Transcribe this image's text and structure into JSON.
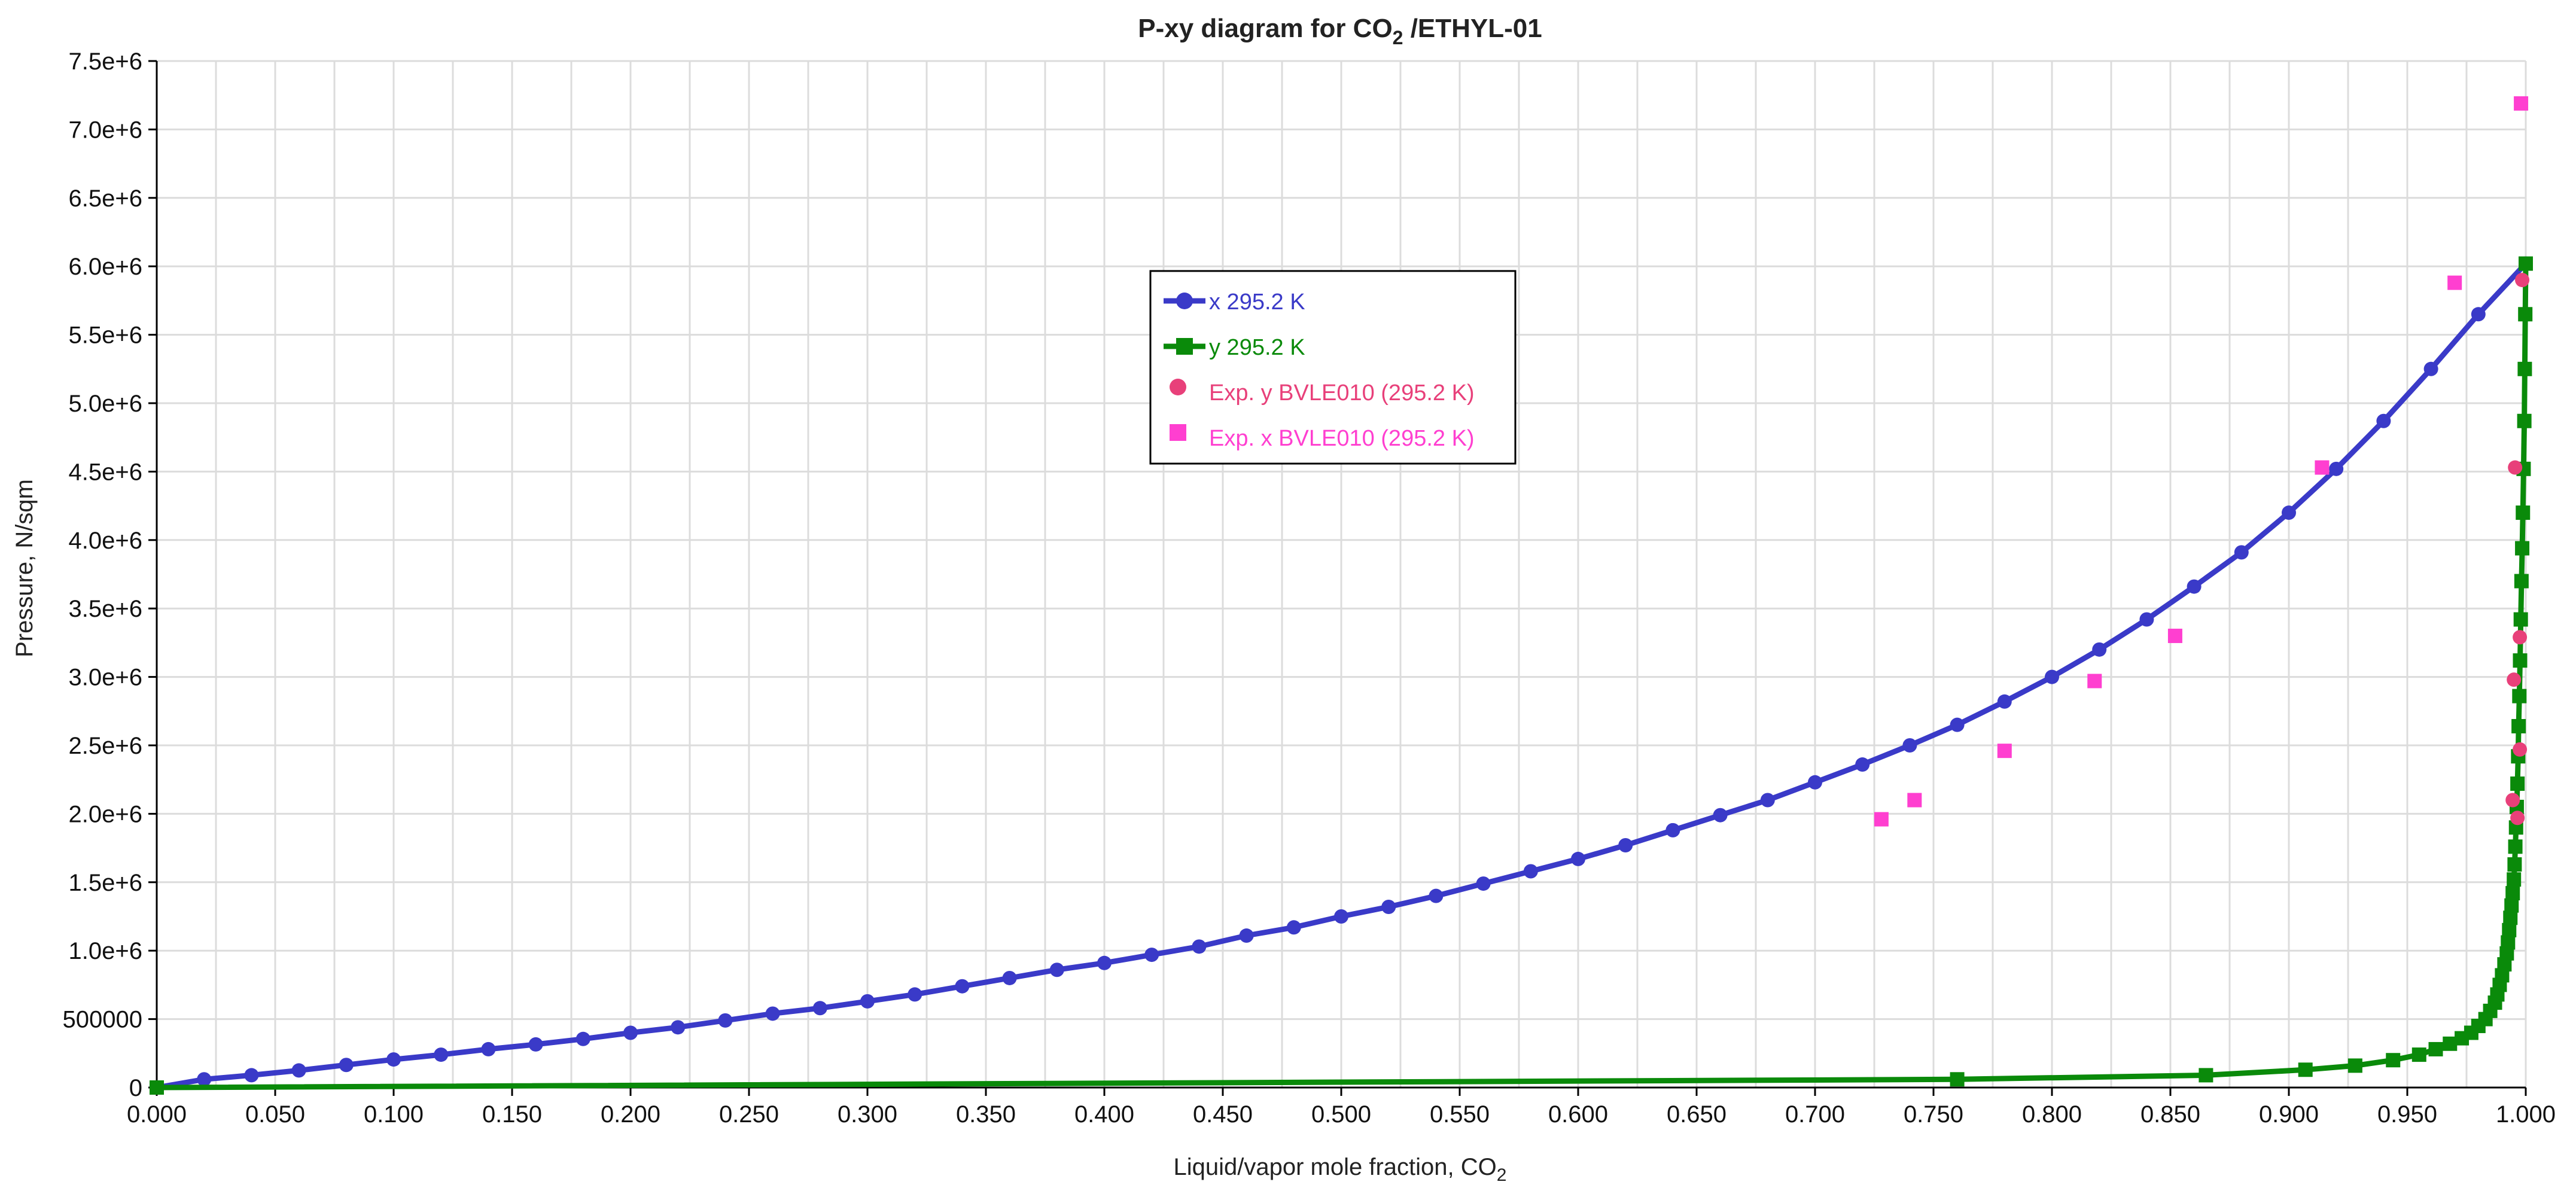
{
  "chart_data": {
    "type": "line",
    "title": "P-xy diagram for CO",
    "title_sub": "2",
    "title_rest": " /ETHYL-01",
    "xlabel": "Liquid/vapor mole fraction, CO",
    "xlabel_sub": "2",
    "ylabel": "Pressure, N/sqm",
    "xlim": [
      0,
      1
    ],
    "ylim": [
      0,
      7500000
    ],
    "grid": true,
    "legend_position": "top-center",
    "x_ticks": [
      {
        "v": 0.0,
        "label": "0.000"
      },
      {
        "v": 0.05,
        "label": "0.050"
      },
      {
        "v": 0.1,
        "label": "0.100"
      },
      {
        "v": 0.15,
        "label": "0.150"
      },
      {
        "v": 0.2,
        "label": "0.200"
      },
      {
        "v": 0.25,
        "label": "0.250"
      },
      {
        "v": 0.3,
        "label": "0.300"
      },
      {
        "v": 0.35,
        "label": "0.350"
      },
      {
        "v": 0.4,
        "label": "0.400"
      },
      {
        "v": 0.45,
        "label": "0.450"
      },
      {
        "v": 0.5,
        "label": "0.500"
      },
      {
        "v": 0.55,
        "label": "0.550"
      },
      {
        "v": 0.6,
        "label": "0.600"
      },
      {
        "v": 0.65,
        "label": "0.650"
      },
      {
        "v": 0.7,
        "label": "0.700"
      },
      {
        "v": 0.75,
        "label": "0.750"
      },
      {
        "v": 0.8,
        "label": "0.800"
      },
      {
        "v": 0.85,
        "label": "0.850"
      },
      {
        "v": 0.9,
        "label": "0.900"
      },
      {
        "v": 0.95,
        "label": "0.950"
      },
      {
        "v": 1.0,
        "label": "1.000"
      }
    ],
    "y_ticks": [
      {
        "v": 0,
        "label": "0"
      },
      {
        "v": 500000,
        "label": "500000"
      },
      {
        "v": 1000000,
        "label": "1.0e+6"
      },
      {
        "v": 1500000,
        "label": "1.5e+6"
      },
      {
        "v": 2000000,
        "label": "2.0e+6"
      },
      {
        "v": 2500000,
        "label": "2.5e+6"
      },
      {
        "v": 3000000,
        "label": "3.0e+6"
      },
      {
        "v": 3500000,
        "label": "3.5e+6"
      },
      {
        "v": 4000000,
        "label": "4.0e+6"
      },
      {
        "v": 4500000,
        "label": "4.5e+6"
      },
      {
        "v": 5000000,
        "label": "5.0e+6"
      },
      {
        "v": 5500000,
        "label": "5.5e+6"
      },
      {
        "v": 6000000,
        "label": "6.0e+6"
      },
      {
        "v": 6500000,
        "label": "6.5e+6"
      },
      {
        "v": 7000000,
        "label": "7.0e+6"
      },
      {
        "v": 7500000,
        "label": "7.5e+6"
      }
    ],
    "series": [
      {
        "name": "x  295.2 K",
        "kind": "line",
        "marker": "circle",
        "color": "#3a3ac8",
        "points": [
          [
            0.0,
            0
          ],
          [
            0.02,
            60000
          ],
          [
            0.04,
            90000
          ],
          [
            0.06,
            125000
          ],
          [
            0.08,
            165000
          ],
          [
            0.1,
            205000
          ],
          [
            0.12,
            240000
          ],
          [
            0.14,
            280000
          ],
          [
            0.16,
            315000
          ],
          [
            0.18,
            355000
          ],
          [
            0.2,
            400000
          ],
          [
            0.22,
            440000
          ],
          [
            0.24,
            490000
          ],
          [
            0.26,
            540000
          ],
          [
            0.28,
            580000
          ],
          [
            0.3,
            630000
          ],
          [
            0.32,
            680000
          ],
          [
            0.34,
            740000
          ],
          [
            0.36,
            800000
          ],
          [
            0.38,
            860000
          ],
          [
            0.4,
            910000
          ],
          [
            0.42,
            970000
          ],
          [
            0.44,
            1030000
          ],
          [
            0.46,
            1110000
          ],
          [
            0.48,
            1170000
          ],
          [
            0.5,
            1250000
          ],
          [
            0.52,
            1320000
          ],
          [
            0.54,
            1400000
          ],
          [
            0.56,
            1490000
          ],
          [
            0.58,
            1580000
          ],
          [
            0.6,
            1670000
          ],
          [
            0.62,
            1770000
          ],
          [
            0.64,
            1880000
          ],
          [
            0.66,
            1990000
          ],
          [
            0.68,
            2100000
          ],
          [
            0.7,
            2230000
          ],
          [
            0.72,
            2360000
          ],
          [
            0.74,
            2500000
          ],
          [
            0.76,
            2650000
          ],
          [
            0.78,
            2820000
          ],
          [
            0.8,
            3000000
          ],
          [
            0.82,
            3200000
          ],
          [
            0.84,
            3420000
          ],
          [
            0.86,
            3660000
          ],
          [
            0.88,
            3910000
          ],
          [
            0.9,
            4200000
          ],
          [
            0.92,
            4520000
          ],
          [
            0.94,
            4870000
          ],
          [
            0.96,
            5250000
          ],
          [
            0.98,
            5650000
          ],
          [
            1.0,
            6020000
          ]
        ]
      },
      {
        "name": "y  295.2 K",
        "kind": "line",
        "marker": "square",
        "color": "#0a8a0a",
        "points": [
          [
            0.0,
            0
          ],
          [
            0.76,
            60000
          ],
          [
            0.865,
            90000
          ],
          [
            0.907,
            130000
          ],
          [
            0.928,
            160000
          ],
          [
            0.944,
            200000
          ],
          [
            0.955,
            240000
          ],
          [
            0.962,
            280000
          ],
          [
            0.968,
            320000
          ],
          [
            0.973,
            360000
          ],
          [
            0.977,
            400000
          ],
          [
            0.98,
            450000
          ],
          [
            0.983,
            500000
          ],
          [
            0.985,
            560000
          ],
          [
            0.987,
            620000
          ],
          [
            0.988,
            680000
          ],
          [
            0.989,
            750000
          ],
          [
            0.99,
            820000
          ],
          [
            0.991,
            900000
          ],
          [
            0.992,
            980000
          ],
          [
            0.9925,
            1060000
          ],
          [
            0.993,
            1150000
          ],
          [
            0.9935,
            1240000
          ],
          [
            0.994,
            1330000
          ],
          [
            0.9945,
            1420000
          ],
          [
            0.995,
            1520000
          ],
          [
            0.9953,
            1630000
          ],
          [
            0.9956,
            1760000
          ],
          [
            0.9959,
            1900000
          ],
          [
            0.9962,
            2050000
          ],
          [
            0.9965,
            2220000
          ],
          [
            0.9968,
            2420000
          ],
          [
            0.997,
            2640000
          ],
          [
            0.9973,
            2860000
          ],
          [
            0.9976,
            3120000
          ],
          [
            0.9979,
            3420000
          ],
          [
            0.9982,
            3700000
          ],
          [
            0.9985,
            3940000
          ],
          [
            0.9988,
            4200000
          ],
          [
            0.9991,
            4520000
          ],
          [
            0.9994,
            4870000
          ],
          [
            0.9996,
            5250000
          ],
          [
            0.9998,
            5650000
          ],
          [
            1.0,
            6020000
          ]
        ]
      },
      {
        "name": "Exp. y BVLE010 (295.2 K)",
        "kind": "scatter",
        "marker": "circle",
        "color": "#e8407a",
        "points": [
          [
            0.9985,
            5900000
          ],
          [
            0.9955,
            4530000
          ],
          [
            0.9975,
            3290000
          ],
          [
            0.995,
            2980000
          ],
          [
            0.9975,
            2470000
          ],
          [
            0.9945,
            2100000
          ],
          [
            0.9965,
            1970000
          ]
        ]
      },
      {
        "name": "Exp. x  BVLE010 (295.2 K)",
        "kind": "scatter",
        "marker": "square",
        "color": "#ff3fd0",
        "points": [
          [
            0.728,
            1960000
          ],
          [
            0.742,
            2100000
          ],
          [
            0.78,
            2460000
          ],
          [
            0.818,
            2970000
          ],
          [
            0.852,
            3300000
          ],
          [
            0.914,
            4530000
          ],
          [
            0.97,
            5880000
          ],
          [
            0.998,
            7190000
          ]
        ]
      }
    ]
  }
}
